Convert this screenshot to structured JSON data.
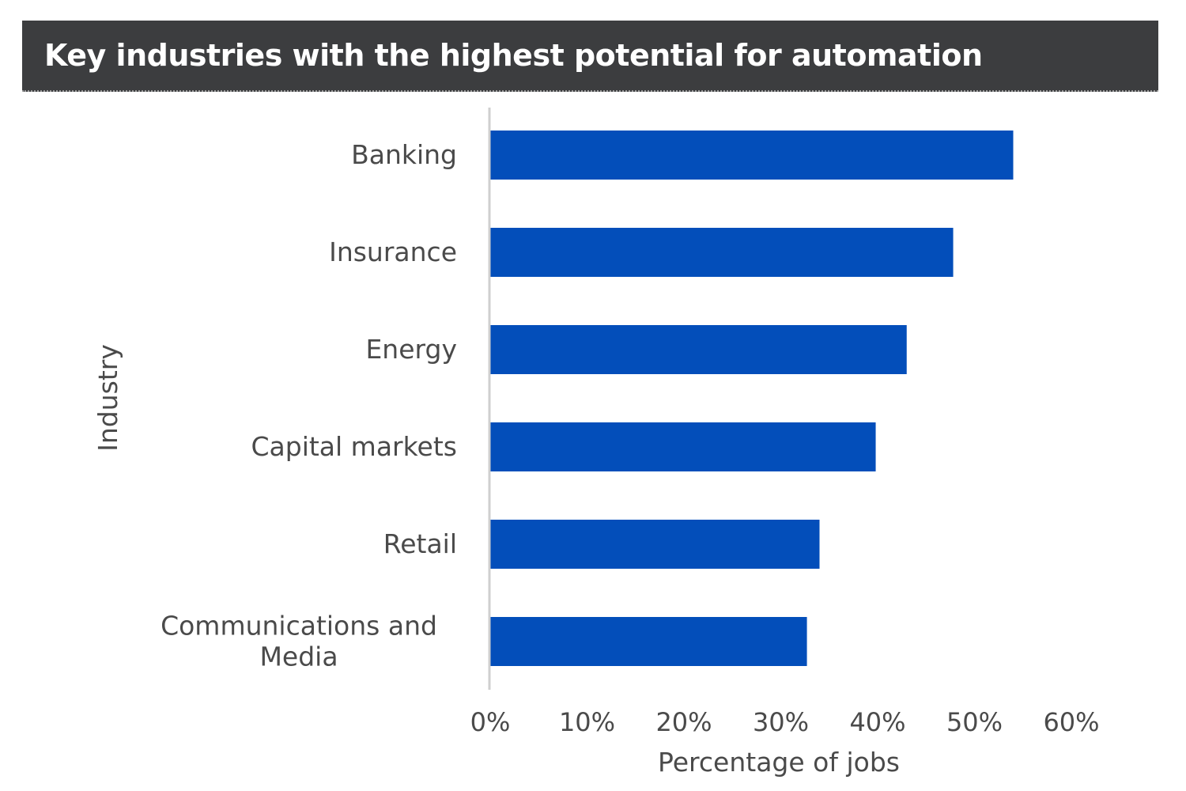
{
  "chart_data": {
    "type": "bar",
    "orientation": "horizontal",
    "title": "Key industries with the highest potential for automation",
    "xlabel": "Percentage of jobs",
    "ylabel": "Industry",
    "categories": [
      "Banking",
      "Insurance",
      "Energy",
      "Capital markets",
      "Retail",
      "Communications and Media"
    ],
    "category_lines": [
      [
        "Banking"
      ],
      [
        "Insurance"
      ],
      [
        "Energy"
      ],
      [
        "Capital markets"
      ],
      [
        "Retail"
      ],
      [
        "Communications and",
        "Media"
      ]
    ],
    "values": [
      54,
      47.8,
      43,
      39.8,
      34,
      32.7
    ],
    "xlim": [
      0,
      60
    ],
    "xticks": [
      "0%",
      "10%",
      "20%",
      "30%",
      "40%",
      "50%",
      "60%"
    ],
    "bar_color": "#034eba",
    "grid": false
  }
}
